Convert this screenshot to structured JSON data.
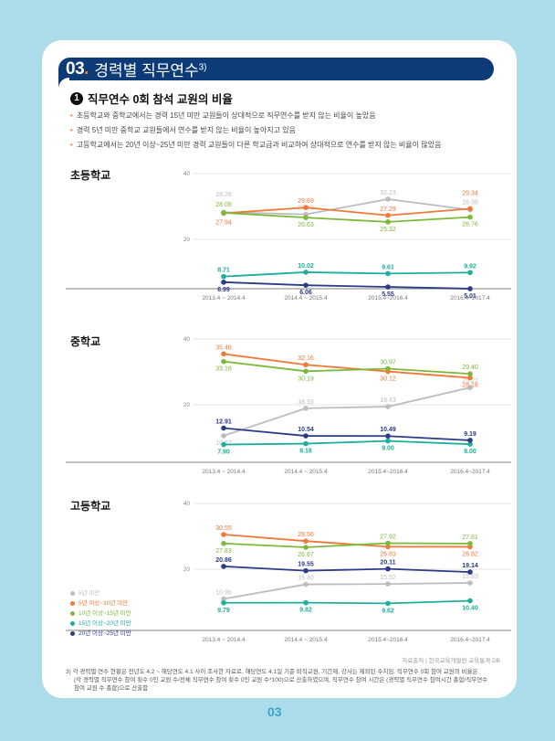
{
  "header": {
    "number": "03",
    "title": "경력별 직무연수",
    "footnote_mark": "3)"
  },
  "subheading": {
    "index": "1",
    "text": "직무연수 0회 참석 교원의 비율"
  },
  "bullets": [
    "초등학교와 중학교에서는 경력 15년 미만 교원들이 상대적으로 직무연수를 받지 않는 비율이 높았음",
    "경력 5년 미만 중학교 교원들에서 연수를 받지 않는 비율이 높아지고 있음",
    "고등학교에서는 20년 이상~25년 미만 경력 교원들이 다른 학교급과 비교하여 상대적으로 연수를 받지 않는 비율이 많았음"
  ],
  "legend": [
    {
      "label": "5년 미만",
      "color": "#bdbdbd"
    },
    {
      "label": "5년 이상~10년 미만",
      "color": "#f07838"
    },
    {
      "label": "10년 이상~15년 미만",
      "color": "#7cb83a"
    },
    {
      "label": "15년 이상~20년 미만",
      "color": "#1fae9c"
    },
    {
      "label": "20년 이상~25년 미만",
      "color": "#2b3b84"
    }
  ],
  "chart_data": [
    {
      "type": "line",
      "title": "초등학교",
      "categories": [
        "2013.4 ~ 2014.4",
        "2014.4 ~ 2015.4",
        "2015.4~2016.4",
        "2016.4~2017.4"
      ],
      "yticks": [
        20,
        40
      ],
      "ylim": [
        0,
        40
      ],
      "grid": true,
      "series": [
        {
          "name": "5년 미만",
          "values": [
            28.28,
            27.6,
            32.23,
            28.98
          ]
        },
        {
          "name": "5년 이상~10년 미만",
          "values": [
            27.94,
            29.69,
            27.29,
            29.34
          ]
        },
        {
          "name": "10년 이상~15년 미만",
          "values": [
            28.08,
            26.63,
            25.32,
            26.76
          ]
        },
        {
          "name": "15년 이상~20년 미만",
          "values": [
            8.71,
            10.02,
            9.61,
            9.92
          ]
        },
        {
          "name": "20년 이상~25년 미만",
          "values": [
            6.99,
            6.06,
            5.55,
            5.01
          ]
        }
      ],
      "labels": [
        [
          "28.28",
          "27.60",
          "32.23",
          "28.98"
        ],
        [
          "27.94",
          "29.69",
          "27.29",
          "29.34"
        ],
        [
          "28.08",
          "26.63",
          "25.32",
          "26.76"
        ],
        [
          "8.71",
          "10.02",
          "9.61",
          "9.92"
        ],
        [
          "6.99",
          "6.06",
          "5.55",
          "5.01"
        ]
      ]
    },
    {
      "type": "line",
      "title": "중학교",
      "categories": [
        "2013.4 ~ 2014.4",
        "2014.4 ~ 2015.4",
        "2015.4~2016.4",
        "2016.4~2017.4"
      ],
      "yticks": [
        20,
        40
      ],
      "ylim": [
        0,
        40
      ],
      "grid": true,
      "series": [
        {
          "name": "5년 미만",
          "values": [
            10.57,
            18.93,
            19.43,
            25.22
          ]
        },
        {
          "name": "5년 이상~10년 미만",
          "values": [
            35.46,
            32.16,
            30.12,
            28.18
          ]
        },
        {
          "name": "10년 이상~15년 미만",
          "values": [
            33.16,
            30.19,
            30.97,
            29.4
          ]
        },
        {
          "name": "15년 이상~20년 미만",
          "values": [
            7.9,
            8.18,
            9.0,
            8.0
          ]
        },
        {
          "name": "20년 이상~25년 미만",
          "values": [
            12.91,
            10.54,
            10.49,
            9.19
          ]
        }
      ],
      "labels": [
        [
          "10.57",
          "18.93",
          "19.43",
          "25.22"
        ],
        [
          "35.46",
          "32.16",
          "30.12",
          "28.18"
        ],
        [
          "33.16",
          "30.19",
          "30.97",
          "29.40"
        ],
        [
          "7.90",
          "8.18",
          "9.00",
          "8.00"
        ],
        [
          "12.91",
          "10.54",
          "10.49",
          "9.19"
        ]
      ]
    },
    {
      "type": "line",
      "title": "고등학교",
      "categories": [
        "2013.4 ~ 2014.4",
        "2014.4 ~ 2015.4",
        "2015.4~2016.4",
        "2016.4~2017.4"
      ],
      "yticks": [
        20,
        40
      ],
      "ylim": [
        0,
        40
      ],
      "grid": true,
      "legend_position": "bottom-left",
      "series": [
        {
          "name": "5년 미만",
          "values": [
            10.96,
            15.4,
            15.52,
            15.83
          ]
        },
        {
          "name": "5년 이상~10년 미만",
          "values": [
            30.55,
            28.56,
            26.83,
            26.82
          ]
        },
        {
          "name": "10년 이상~15년 미만",
          "values": [
            27.83,
            26.67,
            27.92,
            27.81
          ]
        },
        {
          "name": "15년 이상~20년 미만",
          "values": [
            9.79,
            9.82,
            9.62,
            10.4
          ]
        },
        {
          "name": "20년 이상~25년 미만",
          "values": [
            20.86,
            19.55,
            20.11,
            19.14
          ]
        }
      ],
      "labels": [
        [
          "10.96",
          "15.40",
          "15.52",
          "15.83"
        ],
        [
          "30.55",
          "28.56",
          "26.83",
          "26.82"
        ],
        [
          "27.83",
          "26.67",
          "27.92",
          "27.81"
        ],
        [
          "9.79",
          "9.82",
          "9.62",
          "10.40"
        ],
        [
          "20.86",
          "19.55",
          "20.11",
          "19.14"
        ]
      ]
    }
  ],
  "source": "자료출처 | 한국교육개발원 교육통계 DB",
  "footnote": [
    "3) 각 경력별 연수 현황은 전년도 4.2 ~ 해당연도 4.1 사이 조사한 자료로, 해당연도 4.1일 기준 퇴직교원, 기간제, 강사는 제외된 수치임. 직무연수 0회 참여 교원의 비율은",
    "(각 경력별 직무연수 참여 횟수 0인 교원 수/전체 직무연수 참여 횟수 0인 교원 수*100)으로 산출하였으며, 직무연수 참여 시간은 (경력별 직무연수 참여시간 총합/직무연수",
    "참여 교원 수 총합)으로 산출함"
  ],
  "page_number": "03"
}
